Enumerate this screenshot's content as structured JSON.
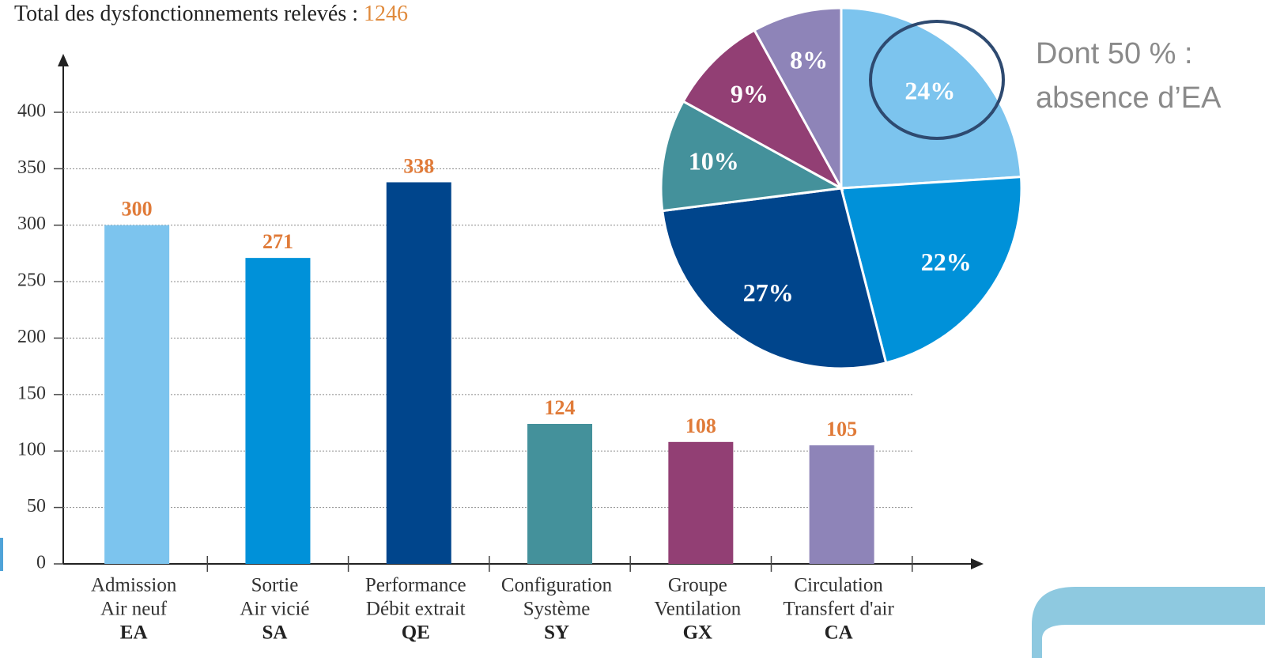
{
  "chart_data": [
    {
      "type": "bar",
      "title": "Total des dysfonctionnements relevés : ",
      "total": 1246,
      "categories": [
        "EA",
        "SA",
        "QE",
        "SY",
        "GX",
        "CA"
      ],
      "category_lines": [
        [
          "Admission",
          "Air neuf"
        ],
        [
          "Sortie",
          "Air vicié"
        ],
        [
          "Performance",
          "Débit extrait"
        ],
        [
          "Configuration",
          "Système"
        ],
        [
          "Groupe",
          "Ventilation"
        ],
        [
          "Circulation",
          "Transfert d'air"
        ]
      ],
      "values": [
        300,
        271,
        338,
        124,
        108,
        105
      ],
      "colors": [
        "#7cc4ee",
        "#0091d9",
        "#00458c",
        "#44919b",
        "#923f74",
        "#8e84b8"
      ],
      "ylim": [
        0,
        450
      ],
      "yticks": [
        0,
        50,
        100,
        150,
        200,
        250,
        300,
        350,
        400
      ],
      "grid": true
    },
    {
      "type": "pie",
      "values": [
        24,
        22,
        27,
        10,
        9,
        8
      ],
      "value_labels": [
        "24%",
        "22%",
        "27%",
        "10%",
        "9%",
        "8%"
      ],
      "colors": [
        "#7cc4ee",
        "#0091d9",
        "#00458c",
        "#44919b",
        "#923f74",
        "#8e84b8"
      ],
      "annotation": [
        "Dont 50 % :",
        "absence d’EA"
      ]
    }
  ]
}
